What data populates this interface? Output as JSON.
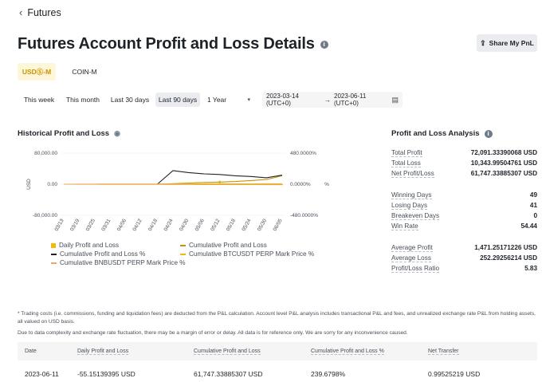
{
  "nav": {
    "back_label": "Futures"
  },
  "header": {
    "title": "Futures Account Profit and Loss Details",
    "share_label": "Share My PnL"
  },
  "account_tabs": [
    {
      "label": "USDⓈ-M",
      "active": true
    },
    {
      "label": "COIN-M",
      "active": false
    }
  ],
  "time_ranges": [
    {
      "label": "This week",
      "active": false
    },
    {
      "label": "This month",
      "active": false
    },
    {
      "label": "Last 30 days",
      "active": false
    },
    {
      "label": "Last 90 days",
      "active": true
    }
  ],
  "period_select": {
    "value": "1 Year"
  },
  "date_range": {
    "start": "2023-03-14 (UTC+0)",
    "arrow": "→",
    "end": "2023-06-11 (UTC+0)"
  },
  "historical": {
    "title": "Historical Profit and Loss",
    "left_axis_label": "USD",
    "right_axis_label": "%",
    "left_ticks": [
      "80,000.00",
      "0.00",
      "-80,000.00"
    ],
    "right_ticks": [
      "480.0000%",
      "0.0000%",
      "-480.0000%"
    ],
    "legend": [
      {
        "label": "Daily Profit and Loss",
        "color": "#f0b90b",
        "kind": "square"
      },
      {
        "label": "Cumulative Profit and Loss",
        "color": "#c99400",
        "kind": "line"
      },
      {
        "label": "Cumulative Profit and Loss %",
        "color": "#1e2329",
        "kind": "line"
      },
      {
        "label": "Cumulative BTCUSDT PERP Mark Price %",
        "color": "#f0b90b",
        "kind": "line"
      },
      {
        "label": "Cumulative BNBUSDT PERP Mark Price %",
        "color": "#e8a86b",
        "kind": "line"
      }
    ]
  },
  "chart_data": {
    "type": "line",
    "title": "Historical Profit and Loss",
    "ylabel": "USD",
    "y2label": "%",
    "ylim": [
      -80000,
      80000
    ],
    "y2lim": [
      -480,
      480
    ],
    "categories": [
      "03/13",
      "03/19",
      "03/25",
      "03/31",
      "04/06",
      "04/12",
      "04/18",
      "04/24",
      "04/30",
      "05/06",
      "05/12",
      "05/18",
      "05/24",
      "05/30",
      "06/05"
    ],
    "series": [
      {
        "name": "Cumulative Profit and Loss",
        "axis": "left",
        "color": "#c99400",
        "values": [
          0,
          0,
          0,
          0,
          0,
          0,
          200,
          1500,
          3000,
          4500,
          5500,
          7000,
          9500,
          12000,
          22000
        ]
      },
      {
        "name": "Cumulative Profit and Loss %",
        "axis": "right",
        "color": "#1e2329",
        "values": [
          0,
          0,
          0,
          0,
          0,
          0,
          0,
          210,
          180,
          160,
          150,
          130,
          120,
          100,
          140
        ]
      },
      {
        "name": "Cumulative BTCUSDT PERP Mark Price %",
        "axis": "right",
        "color": "#f0b90b",
        "values": [
          0,
          1,
          1,
          2,
          2,
          3,
          3,
          4,
          4,
          5,
          5,
          6,
          6,
          7,
          8
        ]
      },
      {
        "name": "Cumulative BNBUSDT PERP Mark Price %",
        "axis": "right",
        "color": "#e8a86b",
        "values": [
          0,
          -1,
          -1,
          -2,
          -2,
          -3,
          -3,
          -4,
          -4,
          -5,
          -5,
          -6,
          -6,
          -7,
          -8
        ]
      },
      {
        "name": "Daily Profit and Loss",
        "axis": "left",
        "color": "#f0b90b",
        "values": [
          0,
          0,
          0,
          0,
          0,
          0,
          0,
          0,
          0,
          0,
          9000,
          0,
          0,
          0,
          -55.15
        ]
      }
    ]
  },
  "analysis": {
    "title": "Profit and Loss Analysis",
    "group1": [
      {
        "label": "Total Profit",
        "value": "72,091.33390068 USD"
      },
      {
        "label": "Total Loss",
        "value": "10,343.99504761 USD"
      },
      {
        "label": "Net Profit/Loss",
        "value": "61,747.33885307 USD"
      }
    ],
    "group2": [
      {
        "label": "Winning Days",
        "value": "49"
      },
      {
        "label": "Losing Days",
        "value": "41"
      },
      {
        "label": "Breakeven Days",
        "value": "0"
      },
      {
        "label": "Win Rate",
        "value": "54.44"
      }
    ],
    "group3": [
      {
        "label": "Average Profit",
        "value": "1,471.25171226 USD"
      },
      {
        "label": "Average Loss",
        "value": "252.29256214 USD"
      },
      {
        "label": "Profit/Loss Ratio",
        "value": "5.83"
      }
    ]
  },
  "notes": {
    "line1": "* Trading costs (i.e. commissions, funding and liquidation fees) are deducted from the P&L calculation. Account level P&L analysis includes transactional P&L and fees, and unrealized exchange rate P&L from holding assets, all valued on USD basis.",
    "line2": "Due to data complexity and exchange rate fluctuation, there may be a margin of error or delay. All data is for reference only. We are sorry for any inconvenience caused."
  },
  "table": {
    "headers": [
      "Date",
      "Daily Profit and Loss",
      "Cumulative Profit and Loss",
      "Cumulative Profit and Loss %",
      "Net Transfer"
    ],
    "rows": [
      [
        "2023-06-11",
        "-55.15139395 USD",
        "61,747.33885307 USD",
        "239.6798%",
        "0.99525219 USD"
      ]
    ]
  }
}
